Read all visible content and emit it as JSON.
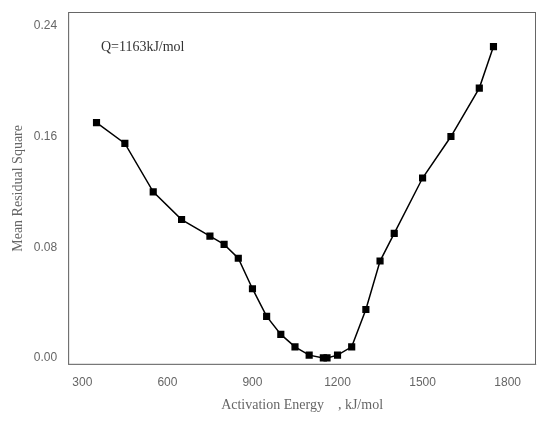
{
  "chart_data": {
    "type": "line",
    "x": [
      350,
      450,
      550,
      650,
      750,
      800,
      850,
      900,
      950,
      1000,
      1050,
      1100,
      1150,
      1163,
      1200,
      1250,
      1300,
      1350,
      1400,
      1500,
      1600,
      1700,
      1750
    ],
    "values": [
      0.17,
      0.155,
      0.12,
      0.1,
      0.088,
      0.082,
      0.072,
      0.05,
      0.03,
      0.017,
      0.008,
      0.002,
      0.0,
      0.0,
      0.002,
      0.008,
      0.035,
      0.07,
      0.09,
      0.13,
      0.16,
      0.195,
      0.225
    ],
    "color": "#000000",
    "marker": "square",
    "annotation": "Q=1163kJ/mol",
    "xlabel": "Activation Energy    , kJ/mol",
    "ylabel": "Mean Residual Square",
    "xlim": [
      250,
      1900
    ],
    "ylim": [
      -0.005,
      0.25
    ],
    "xticks": [
      300,
      600,
      900,
      1200,
      1500,
      1800
    ],
    "yticks": [
      {
        "value": 0,
        "label": "0.00"
      },
      0.08,
      0.16,
      0.24
    ],
    "grid": false
  }
}
